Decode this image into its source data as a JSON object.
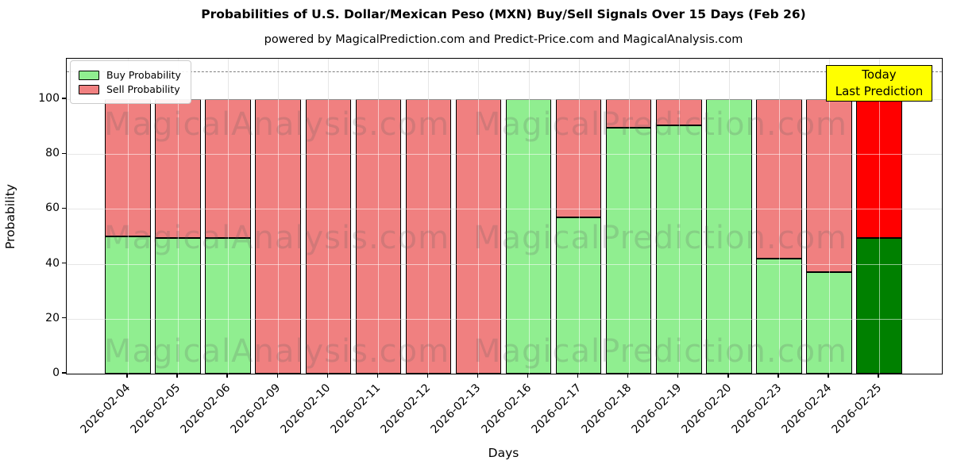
{
  "title": "Probabilities of U.S. Dollar/Mexican Peso (MXN) Buy/Sell Signals Over 15 Days (Feb 26)",
  "subtitle": "powered by MagicalPrediction.com and Predict-Price.com and MagicalAnalysis.com",
  "axes": {
    "xlabel": "Days",
    "ylabel": "Probability",
    "yticks": [
      0,
      20,
      40,
      60,
      80,
      100
    ],
    "ylim": [
      0,
      114.7
    ],
    "grid": true,
    "dashed_line_y": 110
  },
  "legend": {
    "position": "upper-left",
    "items": [
      {
        "label": "Buy Probability",
        "color": "#90EE90"
      },
      {
        "label": "Sell Probability",
        "color": "#F08080"
      }
    ]
  },
  "annotation_box": {
    "lines": [
      "Today",
      "Last Prediction"
    ],
    "bg_color": "#FFFF00"
  },
  "watermarks": {
    "left_text": "MagicalAnalysis.com",
    "right_text": "MagicalPrediction.com"
  },
  "colors": {
    "buy": "#90EE90",
    "sell": "#F08080",
    "buy_today": "#008000",
    "sell_today": "#FF0000",
    "grid": "#C8C8C8",
    "dashed_line": "#7F7F7F"
  },
  "chart_data": {
    "type": "bar",
    "stacked": true,
    "title": "Probabilities of U.S. Dollar/Mexican Peso (MXN) Buy/Sell Signals Over 15 Days (Feb 26)",
    "xlabel": "Days",
    "ylabel": "Probability",
    "ylim": [
      0,
      114.7
    ],
    "legend_position": "upper-left",
    "grid": true,
    "categories": [
      "2026-02-04",
      "2026-02-05",
      "2026-02-06",
      "2026-02-09",
      "2026-02-10",
      "2026-02-11",
      "2026-02-12",
      "2026-02-13",
      "2026-02-16",
      "2026-02-17",
      "2026-02-18",
      "2026-02-19",
      "2026-02-20",
      "2026-02-23",
      "2026-02-24",
      "2026-02-25"
    ],
    "series": [
      {
        "name": "Buy Probability",
        "values": [
          50,
          49.5,
          49.5,
          0,
          0,
          0,
          0,
          0,
          100,
          57,
          89.5,
          90.5,
          100,
          42,
          37,
          49.5
        ]
      },
      {
        "name": "Sell Probability",
        "values": [
          50,
          50.5,
          50.5,
          100,
          100,
          100,
          100,
          100,
          0,
          43,
          10.5,
          9.5,
          0,
          58,
          63,
          50.5
        ]
      }
    ],
    "today_index": 15
  }
}
